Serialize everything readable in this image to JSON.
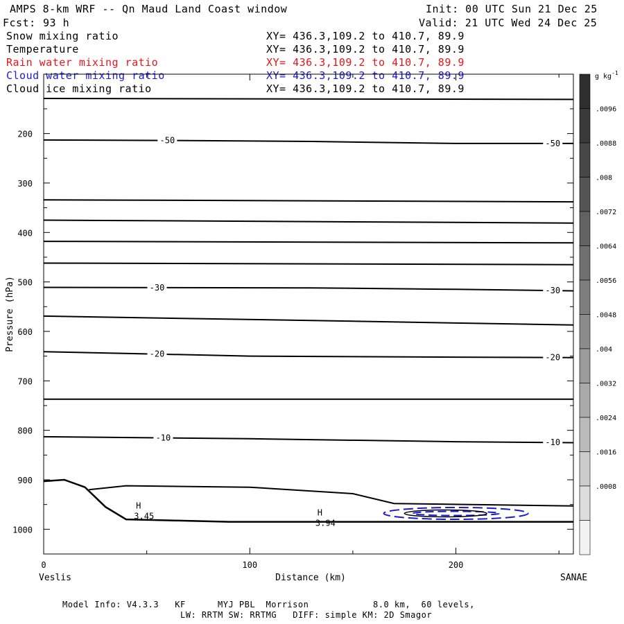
{
  "header": {
    "title": "AMPS 8-km WRF -- Qn Maud Land Coast window",
    "init": "Init: 00 UTC Sun 21 Dec 25",
    "fcst_label": "Fcst:",
    "fcst_value": "93 h",
    "valid": "Valid: 21 UTC Wed 24 Dec 25"
  },
  "fields": [
    {
      "label": "Snow mixing ratio",
      "xy": "XY= 436.3,109.2 to 410.7, 89.9",
      "color": "#000000"
    },
    {
      "label": "Temperature",
      "xy": "XY= 436.3,109.2 to 410.7, 89.9",
      "color": "#000000"
    },
    {
      "label": "Rain water mixing ratio",
      "xy": "XY= 436.3,109.2 to 410.7, 89.9",
      "color": "#e8141c"
    },
    {
      "label": "Cloud water mixing ratio",
      "xy": "XY= 436.3,109.2 to 410.7, 89.9",
      "color": "#1a1ad2"
    },
    {
      "label": "Cloud ice mixing ratio",
      "xy": "XY= 436.3,109.2 to 410.7, 89.9",
      "color": "#000000"
    }
  ],
  "chart_data": {
    "type": "line",
    "xlabel": "Distance (km)",
    "ylabel": "Pressure (hPa)",
    "xlim": [
      0,
      257
    ],
    "ylim": [
      1050,
      80
    ],
    "xticks": [
      0,
      100,
      200
    ],
    "yticks": [
      200,
      300,
      400,
      500,
      600,
      700,
      800,
      900,
      1000
    ],
    "x_end_labels": {
      "left": "Veslis",
      "right": "SANAE"
    },
    "temperature_isotherms": [
      {
        "label": "",
        "points": [
          [
            0,
            129
          ],
          [
            257,
            131
          ]
        ]
      },
      {
        "label": "-50",
        "label_x": [
          60,
          247
        ],
        "points": [
          [
            0,
            213
          ],
          [
            60,
            214
          ],
          [
            130,
            216
          ],
          [
            200,
            220
          ],
          [
            257,
            220
          ]
        ]
      },
      {
        "label": "",
        "points": [
          [
            0,
            334
          ],
          [
            257,
            338
          ]
        ]
      },
      {
        "label": "",
        "points": [
          [
            0,
            375
          ],
          [
            257,
            381
          ]
        ]
      },
      {
        "label": "",
        "points": [
          [
            0,
            418
          ],
          [
            257,
            421
          ]
        ]
      },
      {
        "label": "",
        "points": [
          [
            0,
            462
          ],
          [
            257,
            465
          ]
        ]
      },
      {
        "label": "-30",
        "label_x": [
          55,
          247
        ],
        "points": [
          [
            0,
            511
          ],
          [
            130,
            512
          ],
          [
            200,
            515
          ],
          [
            257,
            518
          ]
        ]
      },
      {
        "label": "",
        "points": [
          [
            0,
            569
          ],
          [
            130,
            578
          ],
          [
            257,
            587
          ]
        ]
      },
      {
        "label": "-20",
        "label_x": [
          55,
          247
        ],
        "points": [
          [
            0,
            641
          ],
          [
            100,
            650
          ],
          [
            200,
            652
          ],
          [
            257,
            653
          ]
        ]
      },
      {
        "label": "",
        "points": [
          [
            0,
            737
          ],
          [
            257,
            737
          ]
        ]
      },
      {
        "label": "-10",
        "label_x": [
          58,
          247
        ],
        "points": [
          [
            0,
            813
          ],
          [
            100,
            817
          ],
          [
            200,
            823
          ],
          [
            257,
            825
          ]
        ]
      }
    ],
    "inversion_contour": {
      "points": [
        [
          22,
          920
        ],
        [
          40,
          912
        ],
        [
          100,
          915
        ],
        [
          150,
          928
        ],
        [
          170,
          948
        ],
        [
          257,
          953
        ]
      ]
    },
    "terrain": {
      "points": [
        [
          0,
          903
        ],
        [
          10,
          900
        ],
        [
          20,
          915
        ],
        [
          30,
          955
        ],
        [
          40,
          980
        ],
        [
          60,
          982
        ],
        [
          90,
          985
        ],
        [
          150,
          985
        ],
        [
          200,
          985
        ],
        [
          257,
          985
        ]
      ]
    },
    "cloud_water_contour": {
      "color": "#1a1ad2",
      "center": [
        200,
        968
      ],
      "rx_km": 35,
      "dy_hpa": 12
    },
    "snow_contour": {
      "center": [
        195,
        968
      ],
      "rx_km": 20,
      "dy_hpa": 7
    },
    "extrema": [
      {
        "marker": "H",
        "value": "3.45",
        "x": 46,
        "p": 958
      },
      {
        "marker": "H",
        "value": "3.94",
        "x": 134,
        "p": 972
      }
    ]
  },
  "colorbar": {
    "unit": "g kg",
    "unit_sup": "-1",
    "labels": [
      ".0096",
      ".0088",
      ".008",
      ".0072",
      ".0064",
      ".0056",
      ".0048",
      ".004",
      ".0032",
      ".0024",
      ".0016",
      ".0008"
    ],
    "fill_colors": [
      "#2e2e2e",
      "#3a3a3a",
      "#474747",
      "#545454",
      "#626262",
      "#707070",
      "#7e7e7e",
      "#8c8c8c",
      "#9b9b9b",
      "#aaaaaa",
      "#bbbbbb",
      "#cccccc",
      "#dddddd",
      "#f2f2f2"
    ]
  },
  "footer": {
    "line1": "Model Info: V4.3.3   KF      MYJ PBL  Morrison            8.0 km,  60 levels,",
    "line2": "LW: RRTM SW: RRTMG   DIFF: simple KM: 2D Smagor"
  }
}
